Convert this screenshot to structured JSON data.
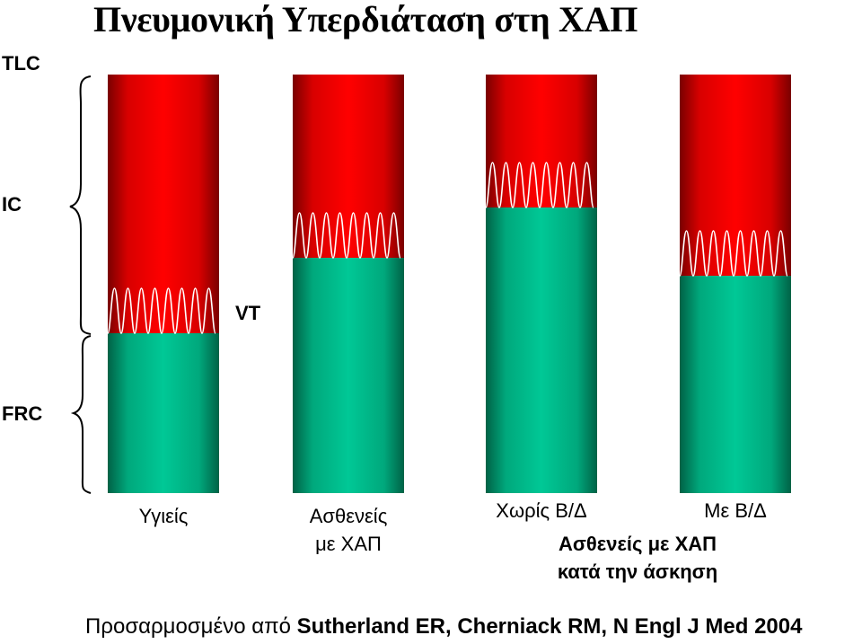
{
  "title": "Πνευμονική Υπερδιάταση στη ΧΑΠ",
  "axis_labels": {
    "tlc": "TLC",
    "ic": "IC",
    "vt": "VT",
    "frc": "FRC"
  },
  "groups": {
    "healthy": "Υγιείς",
    "copd_line1": "Ασθενείς",
    "copd_line2": "με ΧΑΠ",
    "without_bd": "Χωρίς Β/Δ",
    "with_bd": "Με Β/Δ",
    "exercise_line1": "Ασθενείς με ΧΑΠ",
    "exercise_line2": "κατά την άσκηση"
  },
  "footer": {
    "prefix": "Προσαρμοσμένο από ",
    "citation": "Sutherland ER, Cherniack RM, N Engl J Med 2004"
  },
  "colors": {
    "ic_red": "#ff0000",
    "frc_green": "#00c896",
    "tidal_wave": "#ffffff"
  }
}
